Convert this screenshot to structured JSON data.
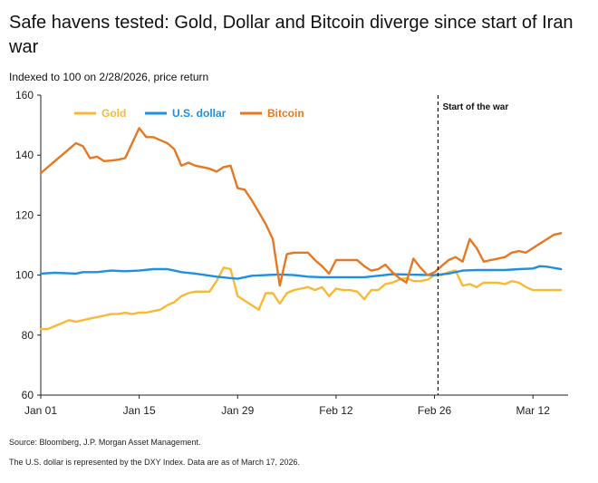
{
  "header": {
    "title": "Safe havens tested: Gold, Dollar and Bitcoin diverge since start of Iran war",
    "subtitle": "Indexed to 100 on 2/28/2026, price return"
  },
  "footer": {
    "source": "Source: Bloomberg, J.P. Morgan Asset Management.",
    "note": "The U.S. dollar is represented by the DXY Index. Data are as of March 17, 2026."
  },
  "chart_data": {
    "type": "line",
    "title": "Safe havens tested: Gold, Dollar and Bitcoin diverge since start of Iran war",
    "subtitle": "Indexed to 100 on 2/28/2026, price return",
    "xlabel": "",
    "ylabel": "",
    "ylim": [
      60,
      160
    ],
    "yticks": [
      60,
      80,
      100,
      120,
      140,
      160
    ],
    "xlim": [
      0,
      75
    ],
    "xticks": [
      {
        "x": 0,
        "label": "Jan 01"
      },
      {
        "x": 14,
        "label": "Jan 15"
      },
      {
        "x": 28,
        "label": "Jan 29"
      },
      {
        "x": 42,
        "label": "Feb 12"
      },
      {
        "x": 56,
        "label": "Feb 26"
      },
      {
        "x": 70,
        "label": "Mar 12"
      }
    ],
    "grid": false,
    "legend_position": "top-left",
    "annotation": {
      "x": 56.5,
      "label": "Start of the war"
    },
    "series": [
      {
        "name": "Gold",
        "color": "#F9B935",
        "points": [
          [
            0,
            82
          ],
          [
            1,
            82
          ],
          [
            2,
            83
          ],
          [
            3,
            84
          ],
          [
            4,
            85
          ],
          [
            5,
            84.5
          ],
          [
            6,
            85
          ],
          [
            7,
            85.5
          ],
          [
            8,
            86
          ],
          [
            9,
            86.5
          ],
          [
            10,
            87
          ],
          [
            11,
            87
          ],
          [
            12,
            87.5
          ],
          [
            13,
            87
          ],
          [
            14,
            87.5
          ],
          [
            15,
            87.5
          ],
          [
            16,
            88
          ],
          [
            17,
            88.5
          ],
          [
            18,
            90
          ],
          [
            19,
            91
          ],
          [
            20,
            93
          ],
          [
            21,
            94
          ],
          [
            22,
            94.5
          ],
          [
            23,
            94.5
          ],
          [
            24,
            94.5
          ],
          [
            25,
            98
          ],
          [
            26,
            102.5
          ],
          [
            27,
            102
          ],
          [
            28,
            93
          ],
          [
            29,
            91.5
          ],
          [
            30,
            90
          ],
          [
            31,
            88.5
          ],
          [
            32,
            94
          ],
          [
            33,
            94
          ],
          [
            34,
            90.5
          ],
          [
            35,
            94
          ],
          [
            36,
            95
          ],
          [
            37,
            95.5
          ],
          [
            38,
            96
          ],
          [
            39,
            95
          ],
          [
            40,
            96
          ],
          [
            41,
            93
          ],
          [
            42,
            95.5
          ],
          [
            43,
            95
          ],
          [
            44,
            95
          ],
          [
            45,
            94.5
          ],
          [
            46,
            92
          ],
          [
            47,
            95
          ],
          [
            48,
            95
          ],
          [
            49,
            97
          ],
          [
            50,
            97.5
          ],
          [
            51,
            98.5
          ],
          [
            52,
            99
          ],
          [
            53,
            98
          ],
          [
            54,
            98
          ],
          [
            55,
            98.5
          ],
          [
            56,
            100
          ],
          [
            57,
            100
          ],
          [
            58,
            101
          ],
          [
            59,
            101.5
          ],
          [
            60,
            96.5
          ],
          [
            61,
            97
          ],
          [
            62,
            96
          ],
          [
            63,
            97.5
          ],
          [
            64,
            97.5
          ],
          [
            65,
            97.5
          ],
          [
            66,
            97
          ],
          [
            67,
            98
          ],
          [
            68,
            97.5
          ],
          [
            69,
            96
          ],
          [
            70,
            95
          ],
          [
            71,
            95
          ],
          [
            72,
            95
          ],
          [
            73,
            95
          ],
          [
            74,
            95
          ]
        ]
      },
      {
        "name": "U.S. dollar",
        "color": "#1E8FE1",
        "points": [
          [
            0,
            100.5
          ],
          [
            2,
            100.8
          ],
          [
            5,
            100.5
          ],
          [
            6,
            101
          ],
          [
            8,
            101
          ],
          [
            10,
            101.5
          ],
          [
            12,
            101.3
          ],
          [
            14,
            101.5
          ],
          [
            16,
            102
          ],
          [
            18,
            102
          ],
          [
            19,
            101.5
          ],
          [
            20,
            101
          ],
          [
            22,
            100.5
          ],
          [
            25,
            99.5
          ],
          [
            27,
            99
          ],
          [
            28,
            98.8
          ],
          [
            30,
            99.8
          ],
          [
            32,
            100
          ],
          [
            34,
            100.2
          ],
          [
            36,
            100
          ],
          [
            38,
            99.5
          ],
          [
            40,
            99.3
          ],
          [
            42,
            99.3
          ],
          [
            46,
            99.3
          ],
          [
            48,
            99.8
          ],
          [
            50,
            100.3
          ],
          [
            52,
            100.2
          ],
          [
            54,
            100.1
          ],
          [
            56,
            100
          ],
          [
            58,
            100.5
          ],
          [
            60,
            101.5
          ],
          [
            62,
            101.7
          ],
          [
            64,
            101.7
          ],
          [
            66,
            101.7
          ],
          [
            68,
            102
          ],
          [
            70,
            102.2
          ],
          [
            71,
            103
          ],
          [
            72,
            102.8
          ],
          [
            74,
            102
          ]
        ]
      },
      {
        "name": "Bitcoin",
        "color": "#E87722",
        "points": [
          [
            0,
            134
          ],
          [
            1,
            136
          ],
          [
            2,
            138
          ],
          [
            3,
            140
          ],
          [
            4,
            142
          ],
          [
            5,
            144
          ],
          [
            6,
            143
          ],
          [
            7,
            139
          ],
          [
            8,
            139.5
          ],
          [
            9,
            138
          ],
          [
            10,
            138.2
          ],
          [
            11,
            138.5
          ],
          [
            12,
            139
          ],
          [
            13,
            144
          ],
          [
            14,
            149
          ],
          [
            15,
            146
          ],
          [
            16,
            146
          ],
          [
            17,
            145
          ],
          [
            18,
            144
          ],
          [
            19,
            142
          ],
          [
            20,
            136.5
          ],
          [
            21,
            137.5
          ],
          [
            22,
            136.5
          ],
          [
            23,
            136
          ],
          [
            24,
            135.5
          ],
          [
            25,
            134.5
          ],
          [
            26,
            136
          ],
          [
            27,
            136.5
          ],
          [
            28,
            129
          ],
          [
            29,
            128.5
          ],
          [
            30,
            125
          ],
          [
            31,
            121
          ],
          [
            32,
            117
          ],
          [
            33,
            112
          ],
          [
            34,
            96.5
          ],
          [
            35,
            107
          ],
          [
            36,
            107.5
          ],
          [
            37,
            107.5
          ],
          [
            38,
            107.5
          ],
          [
            39,
            105
          ],
          [
            40,
            103
          ],
          [
            41,
            100.5
          ],
          [
            42,
            105
          ],
          [
            43,
            105
          ],
          [
            44,
            105
          ],
          [
            45,
            105
          ],
          [
            46,
            103
          ],
          [
            47,
            101.5
          ],
          [
            48,
            102
          ],
          [
            49,
            103.5
          ],
          [
            50,
            101
          ],
          [
            51,
            99
          ],
          [
            52,
            97.5
          ],
          [
            53,
            105.5
          ],
          [
            54,
            102.5
          ],
          [
            55,
            100
          ],
          [
            56,
            101
          ],
          [
            57,
            103
          ],
          [
            58,
            105
          ],
          [
            59,
            106
          ],
          [
            60,
            104.5
          ],
          [
            61,
            112
          ],
          [
            62,
            109
          ],
          [
            63,
            104.5
          ],
          [
            64,
            105
          ],
          [
            65,
            105.5
          ],
          [
            66,
            106
          ],
          [
            67,
            107.5
          ],
          [
            68,
            108
          ],
          [
            69,
            107.5
          ],
          [
            70,
            109
          ],
          [
            71,
            110.5
          ],
          [
            72,
            112
          ],
          [
            73,
            113.5
          ],
          [
            74,
            114
          ]
        ]
      }
    ]
  }
}
